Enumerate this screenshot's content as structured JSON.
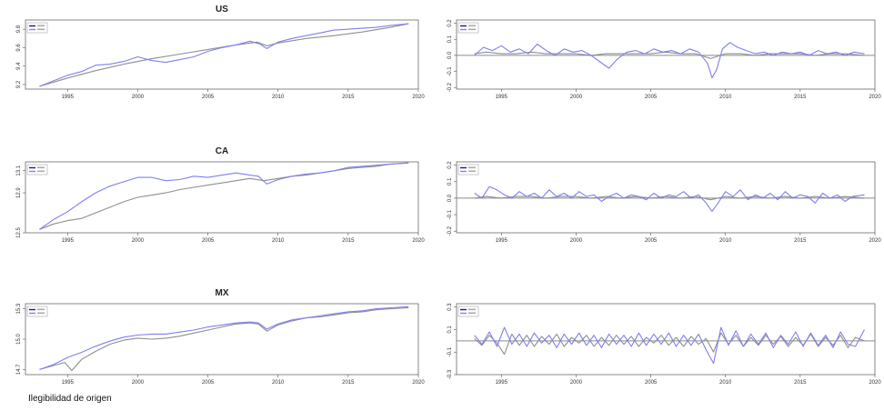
{
  "footnote": "Ilegibilidad de origen",
  "colors": {
    "series_a": "#8e8e8e",
    "series_b": "#7f7ff0",
    "series_dark": "#1c1c6a",
    "zero_line": "#8c8c8c",
    "axis": "#555555"
  },
  "chart_data": [
    {
      "id": "us-level",
      "type": "line",
      "title": "US",
      "xlim": [
        1992,
        2020
      ],
      "ylim": [
        9.15,
        9.9
      ],
      "xticks": [
        "1995",
        "2000",
        "2005",
        "2010",
        "2015",
        "2020"
      ],
      "yticks": [
        "9.2",
        "9.4",
        "9.6",
        "9.8"
      ],
      "legend": "top-left",
      "series": [
        {
          "x": [
            1993,
            1995,
            1997,
            1999,
            2001,
            2003,
            2005,
            2007,
            2008.5,
            2009.2,
            2010,
            2012,
            2014,
            2016,
            2018,
            2019.3
          ],
          "y": [
            9.18,
            9.27,
            9.35,
            9.42,
            9.48,
            9.53,
            9.58,
            9.63,
            9.66,
            9.62,
            9.65,
            9.7,
            9.73,
            9.77,
            9.82,
            9.86
          ]
        },
        {
          "x": [
            1993,
            1994,
            1995,
            1996,
            1997,
            1998,
            1999,
            2000,
            2001,
            2002,
            2003,
            2004,
            2005,
            2006,
            2007,
            2008,
            2008.7,
            2009.2,
            2010,
            2011,
            2012,
            2013,
            2014,
            2015,
            2016,
            2017,
            2018,
            2019.3
          ],
          "y": [
            9.18,
            9.24,
            9.3,
            9.34,
            9.41,
            9.42,
            9.45,
            9.5,
            9.46,
            9.44,
            9.47,
            9.5,
            9.56,
            9.6,
            9.63,
            9.67,
            9.64,
            9.59,
            9.66,
            9.7,
            9.73,
            9.76,
            9.79,
            9.8,
            9.81,
            9.82,
            9.84,
            9.86
          ]
        }
      ]
    },
    {
      "id": "us-diff",
      "type": "line",
      "title": "",
      "xlim": [
        1992,
        2020
      ],
      "ylim": [
        -0.21,
        0.22
      ],
      "xticks": [
        "1995",
        "2000",
        "2005",
        "2010",
        "2015",
        "2020"
      ],
      "yticks": [
        "-0.2",
        "-0.1",
        "0.0",
        "0.1",
        "0.2"
      ],
      "legend": "top-left",
      "zero_line": true,
      "series": [
        {
          "x": [
            1993.2,
            1994,
            1995,
            1996,
            1997,
            1998,
            1999,
            2000,
            2001,
            2002,
            2003,
            2004,
            2005,
            2006,
            2007,
            2008,
            2009,
            2010,
            2011,
            2012,
            2013,
            2014,
            2015,
            2016,
            2017,
            2018,
            2019.3
          ],
          "y": [
            0.01,
            0.02,
            0.01,
            0.01,
            0.02,
            0.01,
            0.01,
            0.01,
            0.0,
            0.01,
            0.01,
            0.01,
            0.01,
            0.02,
            0.01,
            0.01,
            -0.02,
            0.01,
            0.01,
            0.0,
            0.01,
            0.01,
            0.01,
            0.0,
            0.01,
            0.01,
            0.0
          ]
        },
        {
          "x": [
            1993.2,
            1993.8,
            1994.4,
            1995,
            1995.6,
            1996.2,
            1996.8,
            1997.4,
            1998,
            1998.6,
            1999.2,
            1999.8,
            2000.4,
            2001,
            2001.6,
            2002.2,
            2002.8,
            2003.4,
            2004,
            2004.6,
            2005.2,
            2005.8,
            2006.4,
            2007,
            2007.6,
            2008.2,
            2008.8,
            2009.1,
            2009.4,
            2009.8,
            2010.3,
            2010.8,
            2011.4,
            2012,
            2012.6,
            2013.2,
            2013.8,
            2014.4,
            2015,
            2015.6,
            2016.2,
            2016.8,
            2017.4,
            2018,
            2018.6,
            2019.3
          ],
          "y": [
            0.0,
            0.05,
            0.03,
            0.06,
            0.02,
            0.04,
            0.01,
            0.07,
            0.03,
            0.0,
            0.04,
            0.02,
            0.03,
            0.0,
            -0.04,
            -0.08,
            -0.02,
            0.02,
            0.03,
            0.01,
            0.04,
            0.02,
            0.03,
            0.01,
            0.04,
            0.02,
            -0.05,
            -0.14,
            -0.09,
            0.04,
            0.08,
            0.05,
            0.03,
            0.01,
            0.02,
            0.0,
            0.02,
            0.01,
            0.02,
            0.0,
            0.03,
            0.01,
            0.02,
            0.0,
            0.02,
            0.01
          ]
        }
      ]
    },
    {
      "id": "ca-level",
      "type": "line",
      "title": "CA",
      "xlim": [
        1992,
        2020
      ],
      "ylim": [
        12.54,
        13.18
      ],
      "xticks": [
        "1995",
        "2000",
        "2005",
        "2010",
        "2015",
        "2020"
      ],
      "yticks": [
        "12.5",
        "12.9",
        "13.1"
      ],
      "legend": "top-left",
      "series": [
        {
          "x": [
            1993,
            1994,
            1995,
            1996,
            1997,
            1998,
            1999,
            2000,
            2001,
            2002,
            2003,
            2004,
            2005,
            2006,
            2007,
            2008,
            2009,
            2010,
            2011,
            2012,
            2013,
            2014,
            2015,
            2016,
            2017,
            2018,
            2019.3
          ],
          "y": [
            12.57,
            12.62,
            12.65,
            12.67,
            12.72,
            12.77,
            12.82,
            12.86,
            12.88,
            12.9,
            12.93,
            12.95,
            12.97,
            12.99,
            13.01,
            13.03,
            13.01,
            13.03,
            13.05,
            13.06,
            13.08,
            13.1,
            13.12,
            13.13,
            13.14,
            13.16,
            13.17
          ]
        },
        {
          "x": [
            1993,
            1994,
            1995,
            1996,
            1997,
            1998,
            1999,
            2000,
            2001,
            2002,
            2003,
            2004,
            2005,
            2006,
            2007,
            2008,
            2008.6,
            2009.2,
            2010,
            2011,
            2012,
            2013,
            2014,
            2015,
            2016,
            2017,
            2018,
            2019.3
          ],
          "y": [
            12.57,
            12.66,
            12.73,
            12.82,
            12.9,
            12.96,
            13.0,
            13.04,
            13.04,
            13.01,
            13.02,
            13.05,
            13.04,
            13.06,
            13.08,
            13.06,
            13.05,
            12.98,
            13.02,
            13.05,
            13.07,
            13.08,
            13.1,
            13.13,
            13.14,
            13.15,
            13.16,
            13.17
          ]
        }
      ]
    },
    {
      "id": "ca-diff",
      "type": "line",
      "title": "",
      "xlim": [
        1992,
        2020
      ],
      "ylim": [
        -0.21,
        0.22
      ],
      "xticks": [
        "1995",
        "2000",
        "2005",
        "2010",
        "2015",
        "2020"
      ],
      "yticks": [
        "-0.2",
        "-0.1",
        "0.0",
        "0.1",
        "0.2"
      ],
      "legend": "top-left",
      "zero_line": true,
      "series": [
        {
          "x": [
            1993.2,
            1994,
            1995,
            1996,
            1997,
            1998,
            1999,
            2000,
            2001,
            2002,
            2003,
            2004,
            2005,
            2006,
            2007,
            2008,
            2009,
            2010,
            2011,
            2012,
            2013,
            2014,
            2015,
            2016,
            2017,
            2018,
            2019.3
          ],
          "y": [
            0.0,
            0.01,
            0.0,
            0.01,
            0.01,
            0.0,
            0.01,
            0.01,
            0.0,
            0.01,
            0.0,
            0.01,
            0.0,
            0.01,
            0.0,
            0.01,
            -0.01,
            0.01,
            0.0,
            0.01,
            0.0,
            0.01,
            0.0,
            0.01,
            0.0,
            0.01,
            0.0
          ]
        },
        {
          "x": [
            1993.2,
            1993.7,
            1994.2,
            1994.7,
            1995.2,
            1995.7,
            1996.2,
            1996.7,
            1997.2,
            1997.7,
            1998.2,
            1998.7,
            1999.2,
            1999.7,
            2000.2,
            2000.7,
            2001.2,
            2001.7,
            2002.2,
            2002.7,
            2003.2,
            2003.7,
            2004.2,
            2004.7,
            2005.2,
            2005.7,
            2006.2,
            2006.7,
            2007.2,
            2007.7,
            2008.2,
            2008.7,
            2009.1,
            2009.5,
            2010,
            2010.5,
            2011,
            2011.5,
            2012,
            2012.5,
            2013,
            2013.5,
            2014,
            2014.5,
            2015,
            2015.5,
            2016,
            2016.5,
            2017,
            2017.5,
            2018,
            2018.5,
            2019.3
          ],
          "y": [
            0.03,
            0.0,
            0.07,
            0.05,
            0.02,
            0.0,
            0.04,
            0.01,
            0.03,
            0.0,
            0.05,
            0.01,
            0.03,
            0.0,
            0.04,
            0.01,
            0.02,
            -0.02,
            0.01,
            0.03,
            0.0,
            0.02,
            0.01,
            -0.01,
            0.03,
            0.0,
            0.02,
            0.01,
            0.04,
            0.0,
            0.02,
            -0.03,
            -0.08,
            -0.03,
            0.04,
            0.01,
            0.05,
            -0.01,
            0.02,
            0.0,
            0.03,
            -0.01,
            0.04,
            0.0,
            0.02,
            0.01,
            -0.03,
            0.03,
            0.0,
            0.02,
            -0.02,
            0.01,
            0.02
          ]
        }
      ]
    },
    {
      "id": "mx-level",
      "type": "line",
      "title": "MX",
      "xlim": [
        1992,
        2020
      ],
      "ylim": [
        14.65,
        15.35
      ],
      "xticks": [
        "1995",
        "2000",
        "2005",
        "2010",
        "2015",
        "2020"
      ],
      "yticks": [
        "14.7",
        "15.0",
        "15.3"
      ],
      "legend": "top-left",
      "series": [
        {
          "x": [
            1993,
            1994,
            1994.8,
            1995.3,
            1996,
            1997,
            1998,
            1999,
            2000,
            2001,
            2002,
            2003,
            2004,
            2005,
            2006,
            2007,
            2008,
            2008.6,
            2009.2,
            2010,
            2011,
            2012,
            2013,
            2014,
            2015,
            2016,
            2017,
            2018,
            2019.3
          ],
          "y": [
            14.7,
            14.74,
            14.77,
            14.69,
            14.8,
            14.88,
            14.95,
            14.99,
            15.01,
            15.0,
            15.01,
            15.03,
            15.06,
            15.09,
            15.12,
            15.15,
            15.16,
            15.15,
            15.08,
            15.14,
            15.18,
            15.21,
            15.22,
            15.24,
            15.26,
            15.27,
            15.29,
            15.3,
            15.31
          ]
        },
        {
          "x": [
            1993,
            1994,
            1995,
            1996,
            1997,
            1998,
            1999,
            2000,
            2001,
            2002,
            2003,
            2004,
            2005,
            2006,
            2007,
            2008,
            2008.6,
            2009.2,
            2010,
            2011,
            2012,
            2013,
            2014,
            2015,
            2016,
            2017,
            2018,
            2019.3
          ],
          "y": [
            14.7,
            14.75,
            14.82,
            14.87,
            14.93,
            14.98,
            15.02,
            15.04,
            15.05,
            15.05,
            15.07,
            15.09,
            15.12,
            15.14,
            15.16,
            15.17,
            15.16,
            15.1,
            15.15,
            15.19,
            15.21,
            15.23,
            15.25,
            15.27,
            15.28,
            15.3,
            15.31,
            15.32
          ]
        }
      ]
    },
    {
      "id": "mx-diff",
      "type": "line",
      "title": "",
      "xlim": [
        1992,
        2020
      ],
      "ylim": [
        -0.3,
        0.33
      ],
      "xticks": [
        "1995",
        "2000",
        "2005",
        "2010",
        "2015",
        "2020"
      ],
      "yticks": [
        "-0.3",
        "-0.1",
        "0.1",
        "0.3"
      ],
      "legend": "top-left",
      "zero_line": true,
      "series": [
        {
          "x": [
            1993.2,
            1993.7,
            1994.2,
            1994.7,
            1995.2,
            1995.7,
            1996.2,
            1996.7,
            1997.2,
            1997.7,
            1998.2,
            1998.7,
            1999.2,
            1999.7,
            2000.2,
            2000.7,
            2001.2,
            2001.7,
            2002.2,
            2002.7,
            2003.2,
            2003.7,
            2004.2,
            2004.7,
            2005.2,
            2005.7,
            2006.2,
            2006.7,
            2007.2,
            2007.7,
            2008.2,
            2008.7,
            2009.2,
            2009.7,
            2010.2,
            2010.7,
            2011.2,
            2011.7,
            2012.2,
            2012.7,
            2013.2,
            2013.7,
            2014.2,
            2014.7,
            2015.2,
            2015.7,
            2016.2,
            2016.7,
            2017.2,
            2017.7,
            2018.2,
            2018.7,
            2019.3
          ],
          "y": [
            0.02,
            -0.04,
            0.05,
            -0.02,
            -0.12,
            0.06,
            -0.04,
            0.05,
            -0.05,
            0.04,
            -0.03,
            0.06,
            -0.05,
            0.03,
            -0.02,
            0.05,
            -0.05,
            0.03,
            -0.04,
            0.05,
            -0.03,
            0.04,
            -0.05,
            0.03,
            -0.02,
            0.05,
            -0.04,
            0.03,
            -0.05,
            0.04,
            -0.03,
            0.02,
            -0.1,
            0.07,
            -0.03,
            0.05,
            -0.05,
            0.03,
            -0.04,
            0.05,
            -0.03,
            0.04,
            -0.05,
            0.03,
            -0.04,
            0.06,
            -0.05,
            0.03,
            -0.04,
            0.05,
            -0.06,
            0.03,
            0.0
          ]
        },
        {
          "x": [
            1993.2,
            1993.7,
            1994.2,
            1994.7,
            1995.2,
            1995.7,
            1996.2,
            1996.7,
            1997.2,
            1997.7,
            1998.2,
            1998.7,
            1999.2,
            1999.7,
            2000.2,
            2000.7,
            2001.2,
            2001.7,
            2002.2,
            2002.7,
            2003.2,
            2003.7,
            2004.2,
            2004.7,
            2005.2,
            2005.7,
            2006.2,
            2006.7,
            2007.2,
            2007.7,
            2008.2,
            2008.7,
            2009.2,
            2009.7,
            2010.2,
            2010.7,
            2011.2,
            2011.7,
            2012.2,
            2012.7,
            2013.2,
            2013.7,
            2014.2,
            2014.7,
            2015.2,
            2015.7,
            2016.2,
            2016.7,
            2017.2,
            2017.7,
            2018.2,
            2018.7,
            2019.3
          ],
          "y": [
            0.05,
            -0.03,
            0.08,
            -0.05,
            0.12,
            -0.03,
            0.06,
            -0.05,
            0.07,
            -0.02,
            0.05,
            -0.06,
            0.06,
            -0.03,
            0.07,
            -0.04,
            0.05,
            -0.06,
            0.06,
            -0.03,
            0.05,
            -0.05,
            0.07,
            -0.04,
            0.06,
            -0.03,
            0.07,
            -0.05,
            0.05,
            -0.04,
            0.06,
            -0.08,
            -0.2,
            0.12,
            -0.04,
            0.09,
            -0.05,
            0.06,
            -0.03,
            0.07,
            -0.06,
            0.05,
            -0.03,
            0.08,
            -0.05,
            0.07,
            -0.04,
            0.05,
            -0.06,
            0.08,
            -0.03,
            -0.05,
            0.1
          ]
        }
      ]
    }
  ]
}
